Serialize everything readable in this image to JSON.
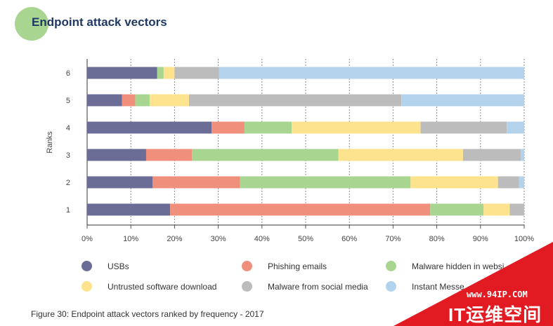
{
  "chart_data": {
    "type": "bar",
    "orientation": "horizontal",
    "stacked": true,
    "title": "Endpoint attack vectors",
    "ylabel": "Ranks",
    "xlabel": "",
    "categories": [
      "6",
      "5",
      "4",
      "3",
      "2",
      "1"
    ],
    "xlim": [
      0,
      100
    ],
    "x_ticks": [
      "0%",
      "10%",
      "20%",
      "30%",
      "40%",
      "50%",
      "60%",
      "70%",
      "80%",
      "90%",
      "100%"
    ],
    "grid": "vertical-dashed",
    "series": [
      {
        "name": "USBs",
        "color": "#6b6d96",
        "values": [
          16,
          8,
          28.5,
          13.5,
          15,
          19
        ]
      },
      {
        "name": "Phishing emails",
        "color": "#ef8f7c",
        "values": [
          0,
          3,
          7.5,
          10.5,
          20,
          59.5
        ]
      },
      {
        "name": "Malware hidden in websites",
        "color": "#a8d590",
        "values": [
          1.5,
          3.3,
          10.8,
          33.5,
          39,
          12.2
        ]
      },
      {
        "name": "Untrusted software download",
        "color": "#fde38e",
        "values": [
          2.5,
          9,
          29.5,
          28.5,
          20,
          6
        ]
      },
      {
        "name": "Malware from social media",
        "color": "#bcbcbc",
        "values": [
          10.2,
          48.6,
          19.7,
          13.2,
          4.8,
          3.3
        ]
      },
      {
        "name": "Instant Messengers",
        "color": "#b3d3ec",
        "values": [
          69.8,
          28.1,
          4,
          0.8,
          1.2,
          0
        ]
      }
    ]
  },
  "legend": {
    "items": [
      {
        "label": "USBs",
        "color": "#6b6d96"
      },
      {
        "label": "Phishing emails",
        "color": "#ef8f7c"
      },
      {
        "label": "Malware hidden in websi",
        "color": "#a8d590"
      },
      {
        "label": "Untrusted software download",
        "color": "#fde38e"
      },
      {
        "label": "Malware from social media",
        "color": "#bcbcbc"
      },
      {
        "label": "Instant Messe",
        "color": "#b3d3ec"
      }
    ]
  },
  "caption": "Figure 30: Endpoint attack vectors ranked by frequency - 2017",
  "watermark": {
    "url": "www.94IP.COM",
    "brand": "IT运维空间"
  }
}
